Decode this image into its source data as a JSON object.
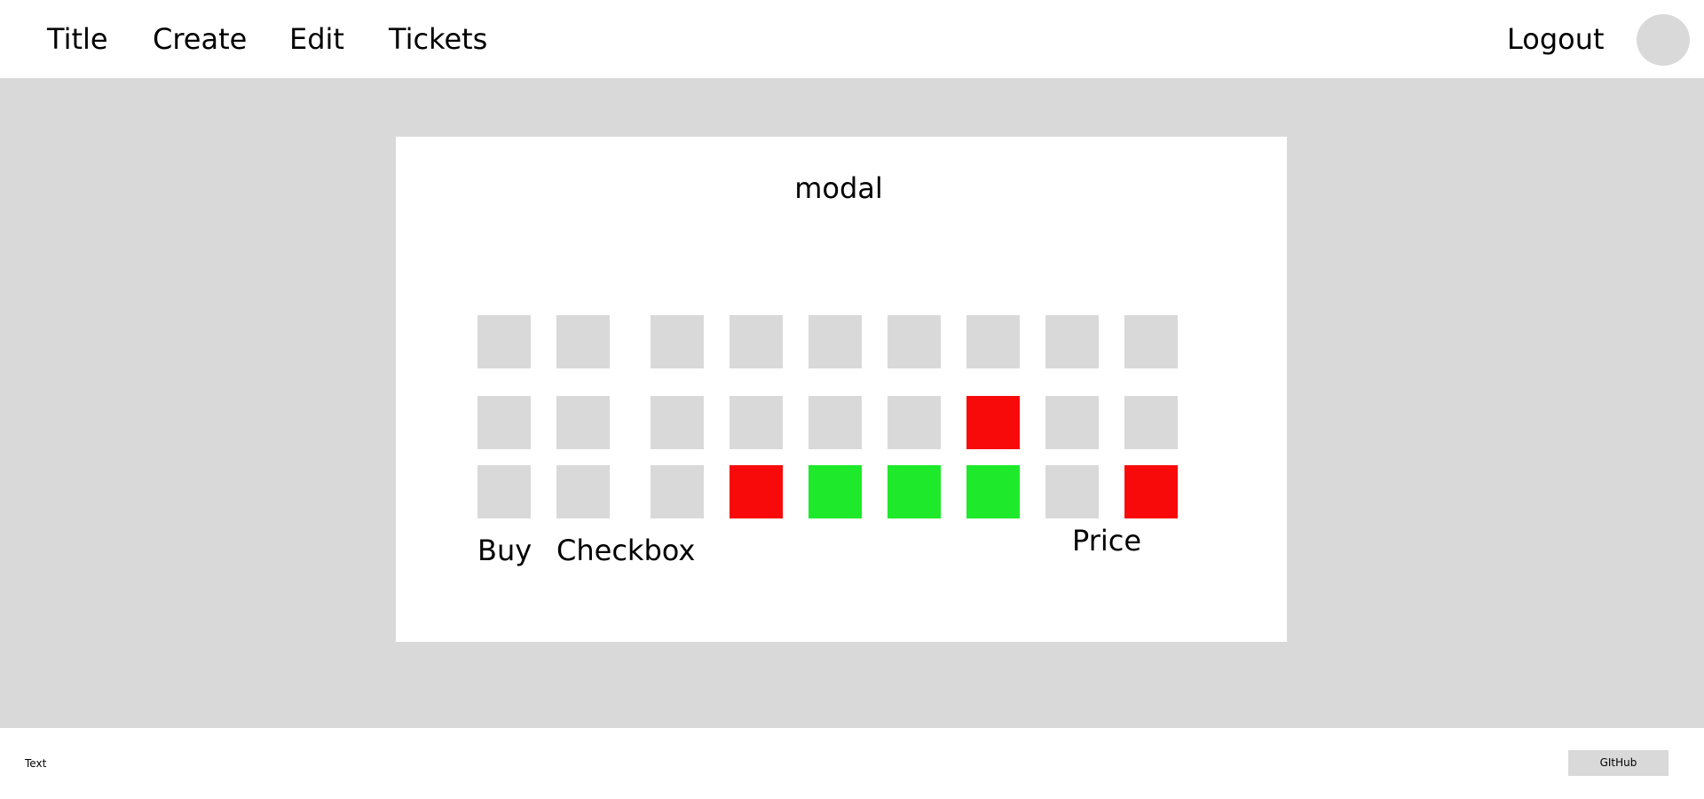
{
  "colors": {
    "page_background": "#ffffff",
    "overlay_background": "#d9d9d9",
    "placeholder_gray": "#d9d9d9",
    "seat_available": "#d9d9d9",
    "seat_taken": "#f90a0a",
    "seat_selected": "#1ee92a"
  },
  "nav": {
    "title": "Title",
    "create": "Create",
    "edit": "Edit",
    "tickets": "Tickets",
    "logout": "Logout"
  },
  "modal": {
    "title": "modal",
    "seat_rows": [
      [
        "available",
        "available",
        "available",
        "available",
        "available",
        "available",
        "available",
        "available",
        "available"
      ],
      [
        "available",
        "available",
        "available",
        "available",
        "available",
        "available",
        "taken",
        "available",
        "available"
      ],
      [
        "available",
        "available",
        "available",
        "taken",
        "selected",
        "selected",
        "selected",
        "available",
        "taken"
      ]
    ],
    "buy_label": "Buy",
    "checkbox_label": "Checkbox",
    "price_label": "Price"
  },
  "footer": {
    "text": "Text",
    "github_label": "GItHub"
  }
}
